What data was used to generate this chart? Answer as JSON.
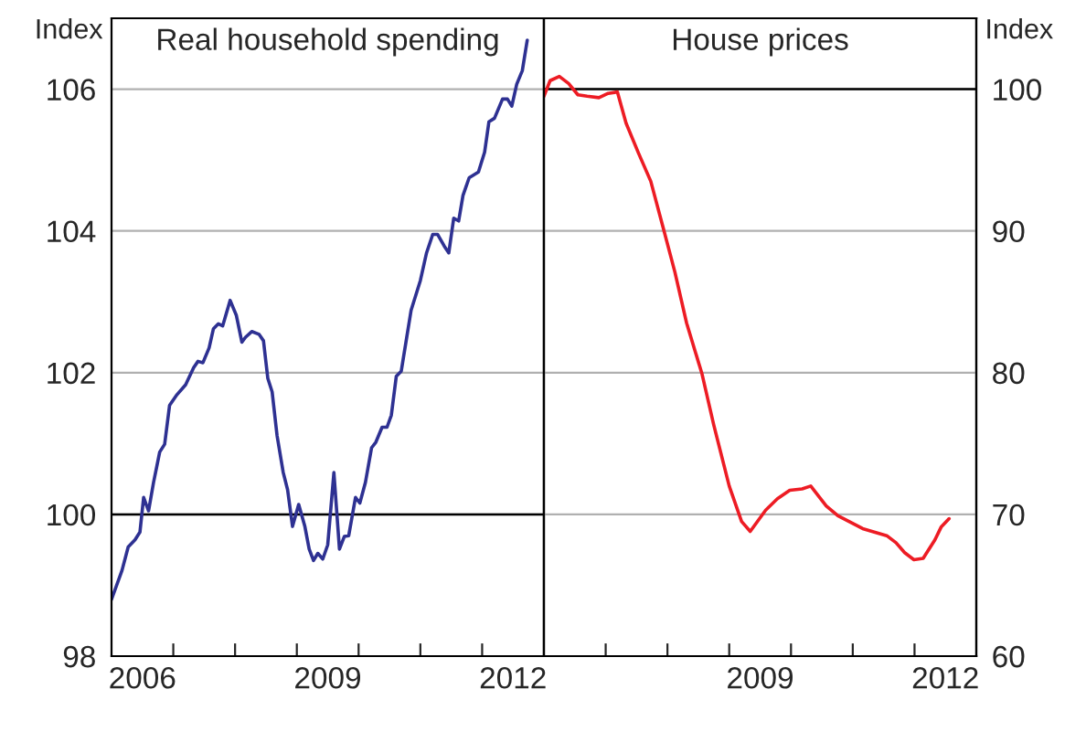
{
  "chart_data": [
    {
      "type": "line",
      "title": "Real household spending",
      "ylabel": "Index",
      "xlim": [
        2006,
        2013
      ],
      "xticks": [
        {
          "value": 2006.5,
          "label": "2006"
        },
        {
          "value": 2009.5,
          "label": "2009"
        },
        {
          "value": 2012.5,
          "label": "2012"
        },
        {
          "value": 2007,
          "label": null
        },
        {
          "value": 2008,
          "label": null
        },
        {
          "value": 2009,
          "label": null
        },
        {
          "value": 2010,
          "label": null
        },
        {
          "value": 2011,
          "label": null
        },
        {
          "value": 2012,
          "label": null
        }
      ],
      "ylim": [
        98,
        107
      ],
      "yticks": [
        98,
        100,
        102,
        104,
        106
      ],
      "grid": "y",
      "ref_lines": [
        {
          "axis": "y",
          "value": 100,
          "color": "#000000"
        }
      ],
      "series": [
        {
          "color": "#2e3192",
          "x": [
            2006.0,
            2006.17,
            2006.27,
            2006.38,
            2006.46,
            2006.52,
            2006.6,
            2006.68,
            2006.78,
            2006.86,
            2006.94,
            2007.06,
            2007.2,
            2007.33,
            2007.4,
            2007.48,
            2007.58,
            2007.65,
            2007.73,
            2007.8,
            2007.92,
            2008.02,
            2008.11,
            2008.17,
            2008.27,
            2008.39,
            2008.46,
            2008.53,
            2008.6,
            2008.68,
            2008.78,
            2008.85,
            2008.93,
            2009.03,
            2009.13,
            2009.2,
            2009.27,
            2009.34,
            2009.42,
            2009.5,
            2009.6,
            2009.69,
            2009.77,
            2009.84,
            2009.95,
            2010.02,
            2010.11,
            2010.21,
            2010.28,
            2010.38,
            2010.46,
            2010.53,
            2010.61,
            2010.69,
            2010.77,
            2010.85,
            2011.0,
            2011.1,
            2011.2,
            2011.28,
            2011.39,
            2011.46,
            2011.54,
            2011.62,
            2011.69,
            2011.79,
            2011.94,
            2012.04,
            2012.11,
            2012.2,
            2012.33,
            2012.41,
            2012.48,
            2012.56,
            2012.65,
            2012.73
          ],
          "values": [
            98.8,
            99.21,
            99.54,
            99.64,
            99.75,
            100.24,
            100.05,
            100.45,
            100.88,
            100.99,
            101.54,
            101.69,
            101.83,
            102.07,
            102.16,
            102.14,
            102.35,
            102.62,
            102.69,
            102.66,
            103.02,
            102.81,
            102.43,
            102.5,
            102.58,
            102.54,
            102.45,
            101.92,
            101.73,
            101.11,
            100.59,
            100.35,
            99.83,
            100.14,
            99.83,
            99.51,
            99.35,
            99.45,
            99.37,
            99.57,
            100.59,
            99.51,
            99.69,
            99.7,
            100.24,
            100.16,
            100.45,
            100.94,
            101.02,
            101.23,
            101.23,
            101.4,
            101.95,
            102.02,
            102.45,
            102.88,
            103.3,
            103.69,
            103.95,
            103.95,
            103.78,
            103.69,
            104.18,
            104.14,
            104.5,
            104.75,
            104.83,
            105.11,
            105.54,
            105.59,
            105.86,
            105.86,
            105.76,
            106.07,
            106.26,
            106.69
          ]
        }
      ]
    },
    {
      "type": "line",
      "title": "House prices",
      "y2label": "Index",
      "xlim": [
        2006,
        2013
      ],
      "xticks": [
        {
          "value": 2009.5,
          "label": "2009"
        },
        {
          "value": 2012.5,
          "label": "2012"
        },
        {
          "value": 2007,
          "label": null
        },
        {
          "value": 2008,
          "label": null
        },
        {
          "value": 2009,
          "label": null
        },
        {
          "value": 2010,
          "label": null
        },
        {
          "value": 2011,
          "label": null
        },
        {
          "value": 2012,
          "label": null
        }
      ],
      "y2lim": [
        60,
        105
      ],
      "y2ticks": [
        60,
        70,
        80,
        90,
        100
      ],
      "grid": "y",
      "ref_lines": [
        {
          "axis": "y2",
          "value": 100,
          "color": "#000000"
        }
      ],
      "series": [
        {
          "color": "#ed1c24",
          "axis": "y2",
          "x": [
            2006.0,
            2006.1,
            2006.25,
            2006.4,
            2006.55,
            2006.7,
            2006.89,
            2007.04,
            2007.19,
            2007.33,
            2007.53,
            2007.73,
            2007.92,
            2008.12,
            2008.31,
            2008.56,
            2008.75,
            2009.0,
            2009.2,
            2009.34,
            2009.59,
            2009.78,
            2009.98,
            2010.18,
            2010.32,
            2010.57,
            2010.76,
            2011.16,
            2011.55,
            2011.7,
            2011.84,
            2011.99,
            2012.14,
            2012.33,
            2012.43,
            2012.56
          ],
          "values": [
            99.5,
            100.6,
            100.9,
            100.4,
            99.6,
            99.5,
            99.4,
            99.7,
            99.8,
            97.6,
            95.5,
            93.5,
            90.4,
            87.1,
            83.5,
            79.9,
            76.3,
            72.0,
            69.5,
            68.8,
            70.3,
            71.1,
            71.7,
            71.8,
            72.0,
            70.6,
            69.9,
            69.0,
            68.5,
            68.0,
            67.3,
            66.8,
            66.9,
            68.2,
            69.1,
            69.7
          ]
        }
      ]
    }
  ]
}
